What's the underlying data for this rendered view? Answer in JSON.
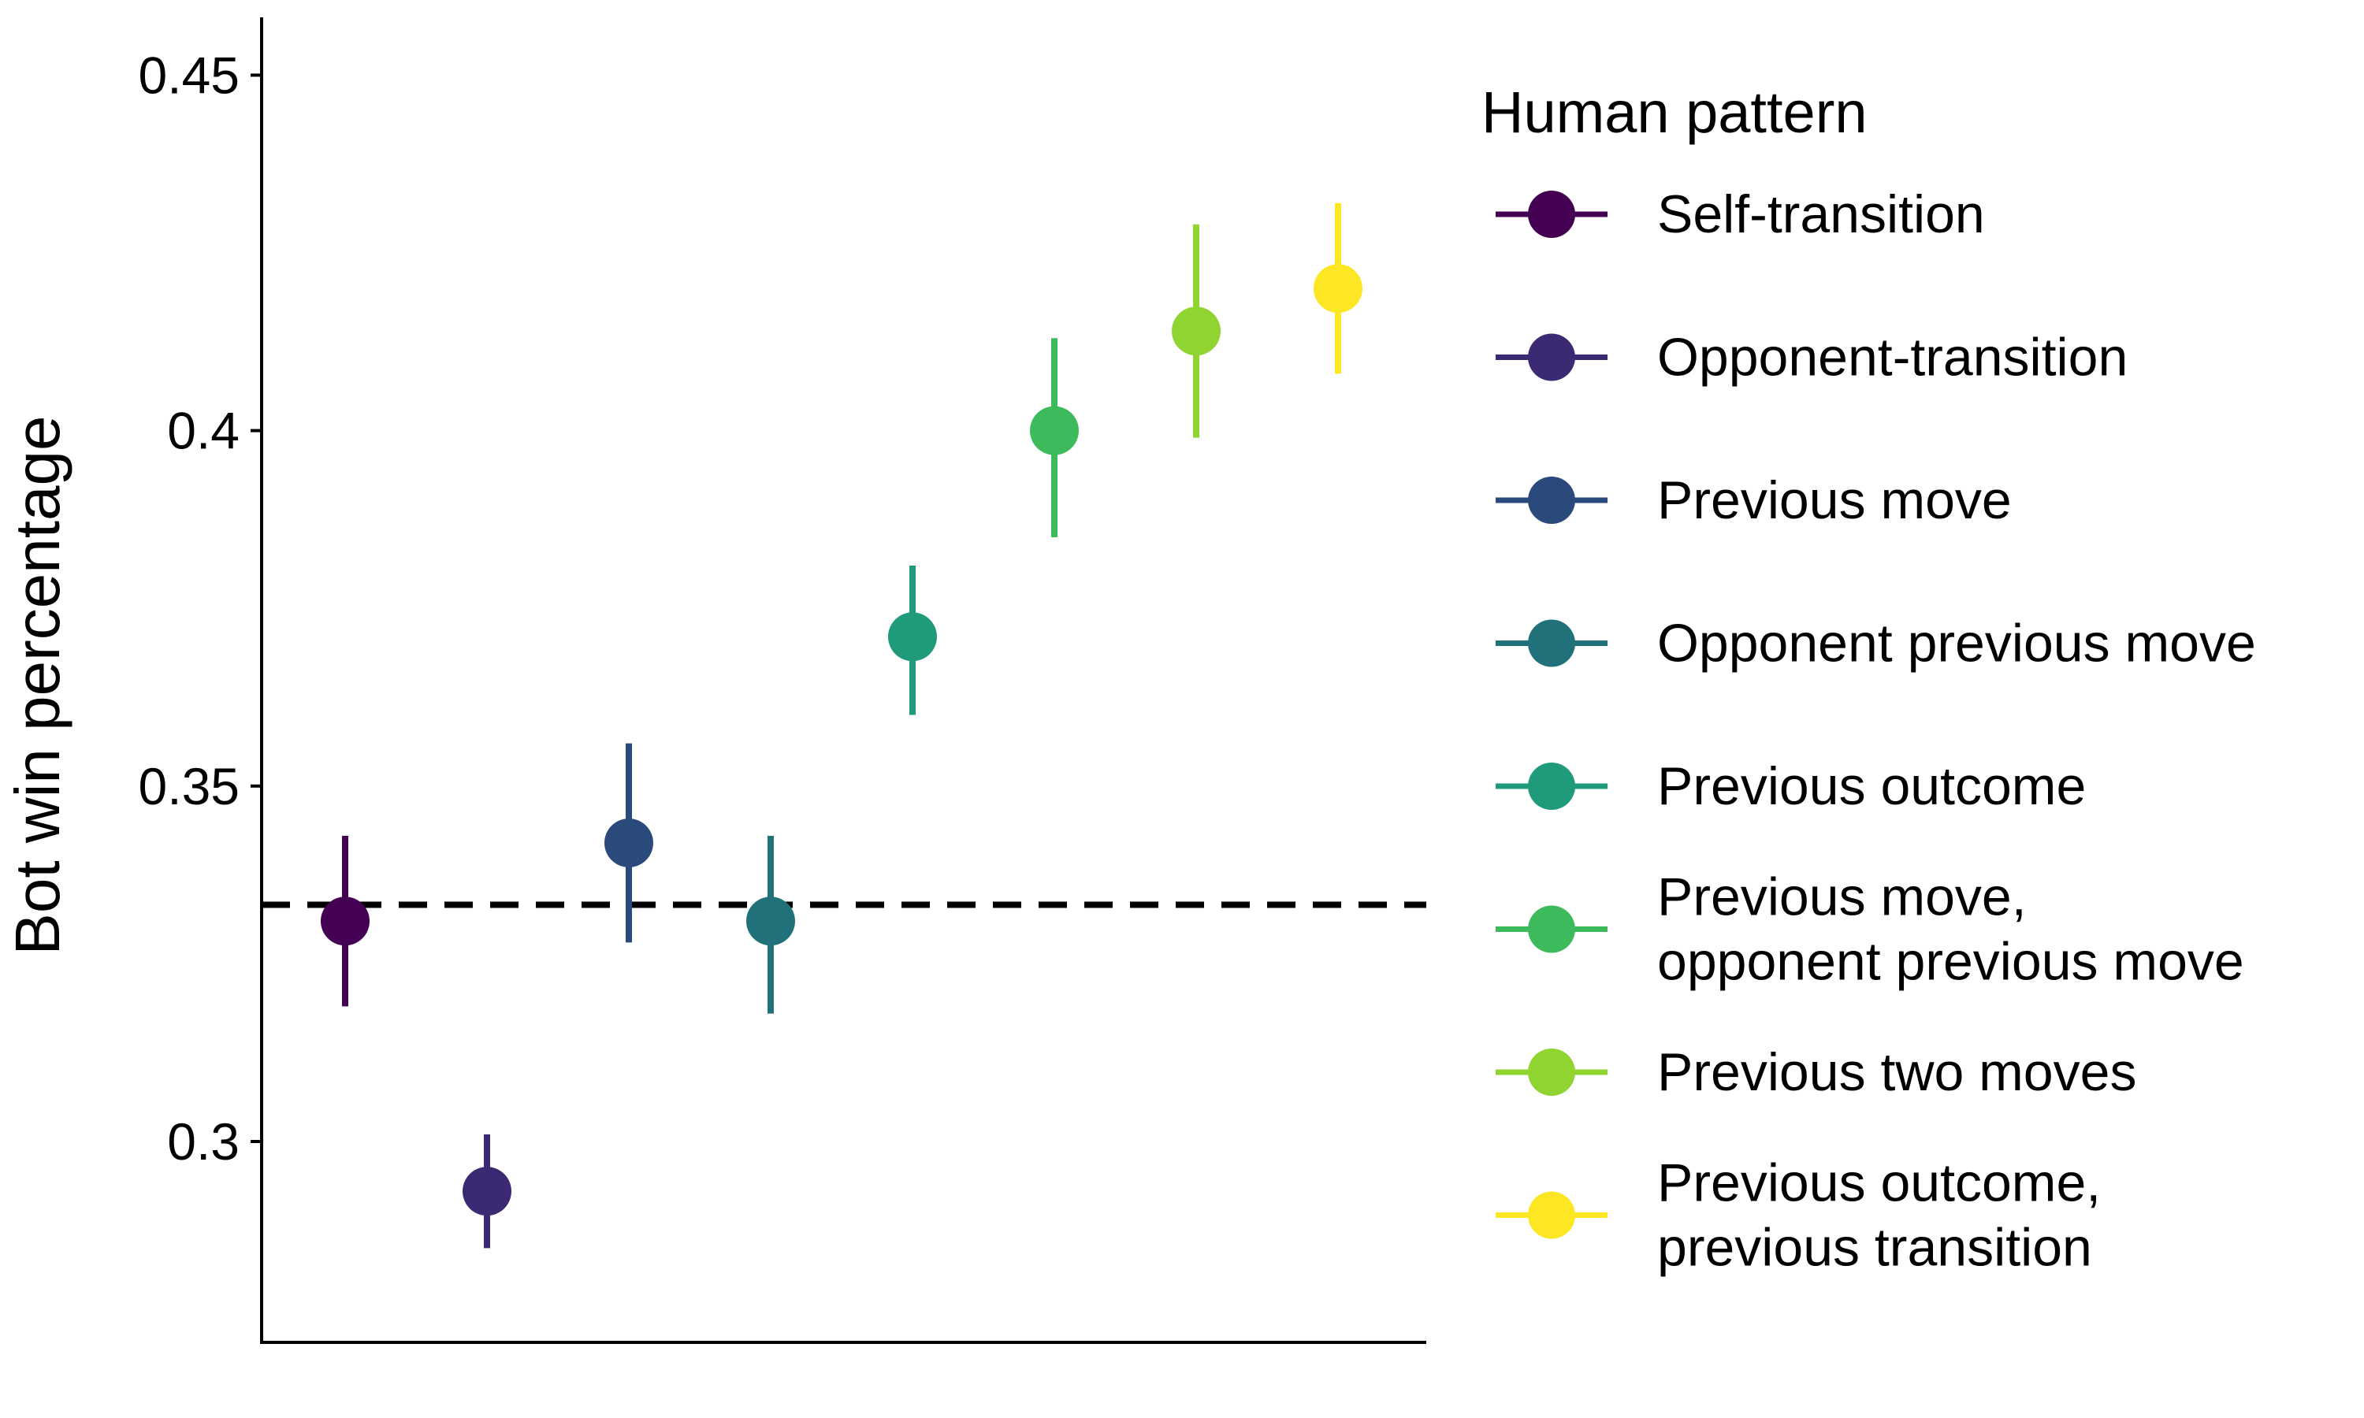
{
  "chart_data": {
    "type": "scatter",
    "title": "",
    "xlabel": "",
    "ylabel": "Bot win percentage",
    "ylim": [
      0.272,
      0.458
    ],
    "yticks": [
      {
        "value": 0.3,
        "label": "0.3"
      },
      {
        "value": 0.35,
        "label": "0.35"
      },
      {
        "value": 0.4,
        "label": "0.4"
      },
      {
        "value": 0.45,
        "label": "0.45"
      }
    ],
    "reference_line": {
      "value": 0.3333,
      "style": "dashed",
      "color": "#000000"
    },
    "grid": false,
    "legend": {
      "title": "Human pattern",
      "placement": "right"
    },
    "series": [
      {
        "name": "Self-transition",
        "name_lines": [
          "Self-transition"
        ],
        "x": 1,
        "y": 0.331,
        "lower": 0.319,
        "upper": 0.343,
        "color": "#440154"
      },
      {
        "name": "Opponent-transition",
        "name_lines": [
          "Opponent-transition"
        ],
        "x": 2,
        "y": 0.293,
        "lower": 0.285,
        "upper": 0.301,
        "color": "#3B2A73"
      },
      {
        "name": "Previous move",
        "name_lines": [
          "Previous move"
        ],
        "x": 3,
        "y": 0.342,
        "lower": 0.328,
        "upper": 0.356,
        "color": "#2B4A7C"
      },
      {
        "name": "Opponent previous move",
        "name_lines": [
          "Opponent previous move"
        ],
        "x": 4,
        "y": 0.331,
        "lower": 0.318,
        "upper": 0.343,
        "color": "#21717A"
      },
      {
        "name": "Previous outcome",
        "name_lines": [
          "Previous outcome"
        ],
        "x": 5,
        "y": 0.371,
        "lower": 0.36,
        "upper": 0.381,
        "color": "#1F9A7A"
      },
      {
        "name": "Previous move, opponent previous move",
        "name_lines": [
          "Previous move,",
          "opponent previous move"
        ],
        "x": 6,
        "y": 0.4,
        "lower": 0.385,
        "upper": 0.413,
        "color": "#3DBB5C"
      },
      {
        "name": "Previous two moves",
        "name_lines": [
          "Previous two moves"
        ],
        "x": 7,
        "y": 0.414,
        "lower": 0.399,
        "upper": 0.429,
        "color": "#8FD431"
      },
      {
        "name": "Previous outcome, previous transition",
        "name_lines": [
          "Previous outcome,",
          "previous transition"
        ],
        "x": 8,
        "y": 0.42,
        "lower": 0.408,
        "upper": 0.432,
        "color": "#FDE725"
      }
    ]
  }
}
